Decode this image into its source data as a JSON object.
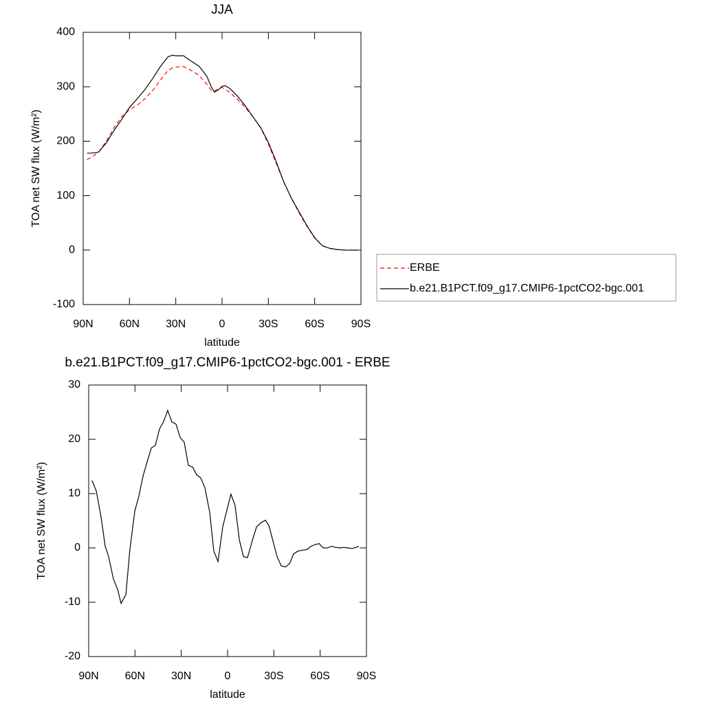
{
  "chart_data": [
    {
      "type": "line",
      "title": "JJA",
      "xlabel": "latitude",
      "ylabel": "TOA net SW flux (W/m²)",
      "x": [
        87.5,
        85,
        80,
        75,
        70,
        65,
        60,
        55,
        50,
        45,
        40,
        35,
        32,
        30,
        25,
        20,
        15,
        10,
        7,
        5,
        2,
        0,
        -2,
        -5,
        -10,
        -15,
        -20,
        -25,
        -30,
        -35,
        -40,
        -45,
        -50,
        -55,
        -60,
        -65,
        -70,
        -75,
        -80,
        -85,
        -88
      ],
      "series": [
        {
          "name": "ERBE",
          "color": "#ff0000",
          "dashed": true,
          "values": [
            166,
            170,
            180,
            200,
            225,
            245,
            258,
            266,
            278,
            293,
            312,
            330,
            335,
            336,
            337,
            330,
            321,
            305,
            293,
            292,
            297,
            299,
            295,
            290,
            277,
            262,
            245,
            225,
            195,
            160,
            125,
            95,
            68,
            44,
            22,
            8,
            3,
            1,
            0,
            0,
            0
          ]
        },
        {
          "name": "b.e21.B1PCT.f09_g17.CMIP6-1pctCO2-bgc.001",
          "color": "#000000",
          "dashed": false,
          "values": [
            178,
            178,
            180,
            197,
            220,
            240,
            262,
            278,
            295,
            315,
            337,
            355,
            358,
            357,
            357,
            347,
            338,
            320,
            300,
            290,
            295,
            301,
            302,
            297,
            283,
            265,
            245,
            225,
            198,
            163,
            125,
            95,
            70,
            45,
            23,
            8,
            3,
            1,
            0,
            0,
            0
          ]
        }
      ],
      "xlim": [
        90,
        -90
      ],
      "xticks": [
        {
          "value": 90,
          "label": "90N"
        },
        {
          "value": 60,
          "label": "60N"
        },
        {
          "value": 30,
          "label": "30N"
        },
        0,
        {
          "value": -30,
          "label": "30S"
        },
        {
          "value": -60,
          "label": "60S"
        },
        {
          "value": -90,
          "label": "90S"
        }
      ],
      "ylim": [
        -100,
        400
      ],
      "yticks": [
        -100,
        0,
        100,
        200,
        300,
        400
      ],
      "legend": "right"
    },
    {
      "type": "line",
      "title": "b.e21.B1PCT.f09_g17.CMIP6-1pctCO2-bgc.001 - ERBE",
      "xlabel": "latitude",
      "ylabel": "TOA net SW flux (W/m²)",
      "x": [
        87.8,
        85.1,
        82,
        79.3,
        77.1,
        74,
        71.3,
        69,
        65.9,
        63.3,
        60.1,
        57.5,
        54.8,
        52.1,
        49.4,
        46.8,
        44.1,
        41.4,
        38.8,
        36.1,
        33.4,
        30.7,
        28.1,
        25.4,
        22.7,
        20.1,
        17.4,
        14.7,
        11.6,
        8.9,
        6.2,
        3.1,
        0.4,
        -2.2,
        -4.9,
        -7.6,
        -10.3,
        -12.9,
        -16.1,
        -18.8,
        -21.9,
        -24.5,
        -26.8,
        -29.4,
        -32.1,
        -34.8,
        -37.5,
        -40.2,
        -42.8,
        -45.5,
        -48.6,
        -51.3,
        -54,
        -56.6,
        -59.3,
        -62,
        -64.6,
        -67.3,
        -70,
        -72.7,
        -75.3,
        -78,
        -80.7,
        -83.3,
        -85
      ],
      "values": [
        12.4,
        10.5,
        5.7,
        0.3,
        -1.6,
        -5.7,
        -7.6,
        -10.2,
        -8.6,
        -0.3,
        6.8,
        9.5,
        13.2,
        15.9,
        18.4,
        18.9,
        21.9,
        23.3,
        25.3,
        23.2,
        22.8,
        20.3,
        19.5,
        15.2,
        14.9,
        13.5,
        12.9,
        11.1,
        6.6,
        -0.6,
        -2.5,
        3.9,
        7,
        9.9,
        7.8,
        1.5,
        -1.6,
        -1.8,
        1.4,
        3.9,
        4.7,
        5.1,
        4.1,
        1.3,
        -1.6,
        -3.3,
        -3.5,
        -2.9,
        -1.1,
        -0.6,
        -0.4,
        -0.3,
        0.3,
        0.6,
        0.8,
        0,
        0,
        0.3,
        0.1,
        0,
        0.1,
        0,
        -0.1,
        0.1,
        0.3
      ],
      "color": "#000000",
      "xlim": [
        90,
        -90
      ],
      "xticks": [
        {
          "value": 90,
          "label": "90N"
        },
        {
          "value": 60,
          "label": "60N"
        },
        {
          "value": 30,
          "label": "30N"
        },
        0,
        {
          "value": -30,
          "label": "30S"
        },
        {
          "value": -60,
          "label": "60S"
        },
        {
          "value": -90,
          "label": "90S"
        }
      ],
      "ylim": [
        -20,
        30
      ],
      "yticks": [
        -20,
        -10,
        0,
        10,
        20,
        30
      ]
    }
  ]
}
